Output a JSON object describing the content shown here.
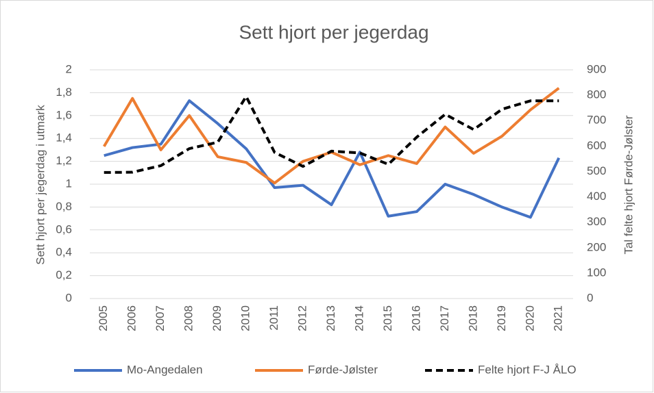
{
  "chart_data": {
    "type": "line",
    "title": "Sett hjort per jegerdag",
    "y_label": "Sett hjort per jegerdag i utmark",
    "y2_label": "Tal felte hjort Førde-Jølster",
    "categories": [
      "2005",
      "2006",
      "2007",
      "2008",
      "2009",
      "2010",
      "2011",
      "2012",
      "2013",
      "2014",
      "2015",
      "2016",
      "2017",
      "2018",
      "2019",
      "2020",
      "2021"
    ],
    "series": [
      {
        "name": "Mo-Angedalen",
        "color": "#4472c4",
        "values": [
          1.25,
          1.32,
          1.35,
          1.73,
          1.53,
          1.31,
          0.97,
          0.99,
          0.82,
          1.28,
          0.72,
          0.76,
          1.0,
          0.91,
          0.8,
          0.71,
          1.23
        ]
      },
      {
        "name": "Førde-Jølster",
        "color": "#ed7d31",
        "values": [
          1.33,
          1.75,
          1.3,
          1.6,
          1.24,
          1.19,
          1.01,
          1.2,
          1.28,
          1.17,
          1.25,
          1.18,
          1.5,
          1.27,
          1.42,
          1.65,
          1.84
        ]
      },
      {
        "name": "Felte hjort F-J ÅLO",
        "color": "#000000",
        "dashed": true,
        "axis": "y2",
        "values": [
          496,
          497,
          523,
          590,
          615,
          795,
          575,
          520,
          580,
          573,
          528,
          635,
          725,
          665,
          745,
          778,
          778
        ]
      }
    ],
    "ylim": [
      0,
      2
    ],
    "yticks": [
      0,
      {
        "value": 0.2,
        "label": "0,2"
      },
      {
        "value": 0.4,
        "label": "0,4"
      },
      {
        "value": 0.6,
        "label": "0,6"
      },
      {
        "value": 0.8,
        "label": "0,8"
      },
      1,
      {
        "value": 1.2,
        "label": "1,2"
      },
      {
        "value": 1.4,
        "label": "1,4"
      },
      {
        "value": 1.6,
        "label": "1,6"
      },
      {
        "value": 1.8,
        "label": "1,8"
      },
      2
    ],
    "y2lim": [
      0,
      900
    ],
    "y2ticks": [
      0,
      100,
      200,
      300,
      400,
      500,
      600,
      700,
      800,
      900
    ],
    "grid": true,
    "legend": "bottom"
  }
}
